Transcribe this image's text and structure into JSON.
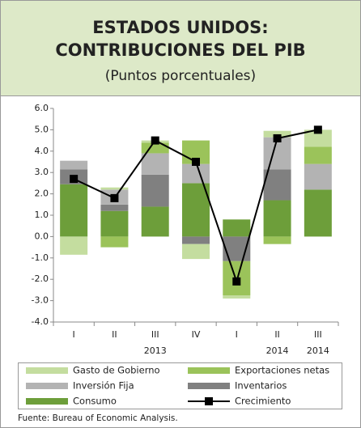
{
  "chart_data": {
    "type": "bar",
    "stacked": true,
    "title": [
      "ESTADOS UNIDOS:",
      "CONTRIBUCIONES DEL PIB"
    ],
    "subtitle": "(Puntos porcentuales)",
    "source": "Fuente:  Bureau of Economic Analysis.",
    "categories": [
      "I",
      "II",
      "III",
      "IV",
      "I",
      "II",
      "III"
    ],
    "year_labels": [
      null,
      null,
      "2013",
      null,
      null,
      "2014",
      "2014"
    ],
    "ylim": [
      -4,
      6
    ],
    "yticks": [
      {
        "value": -4,
        "label": "-4.0"
      },
      {
        "value": -3,
        "label": "-3.0"
      },
      {
        "value": -2,
        "label": "-2.0"
      },
      {
        "value": -1,
        "label": "-1.0"
      },
      {
        "value": 0,
        "label": "0.0"
      },
      {
        "value": 1,
        "label": "1.0"
      },
      {
        "value": 2,
        "label": "2.0"
      },
      {
        "value": 3,
        "label": "3.0"
      },
      {
        "value": 4,
        "label": "4.0"
      },
      {
        "value": 5,
        "label": "5.0"
      },
      {
        "value": 6,
        "label": "6.0"
      }
    ],
    "series": [
      {
        "name": "Consumo",
        "color": "#6d9e3a",
        "values": [
          2.45,
          1.2,
          1.4,
          2.5,
          0.8,
          1.7,
          2.2
        ]
      },
      {
        "name": "Inventarios",
        "color": "#808080",
        "values": [
          0.7,
          0.3,
          1.5,
          -0.35,
          -1.15,
          1.45,
          0
        ]
      },
      {
        "name": "Inversión Fija",
        "color": "#b3b3b3",
        "values": [
          0.4,
          0.7,
          1.0,
          0.9,
          0,
          1.5,
          1.2
        ]
      },
      {
        "name": "Exportaciones netas",
        "color": "#9bc35a",
        "values": [
          0,
          -0.5,
          0.5,
          1.1,
          -1.6,
          -0.35,
          0.8
        ]
      },
      {
        "name": "Gasto de Gobierno",
        "color": "#c4dd9f",
        "values": [
          -0.85,
          0.1,
          0.1,
          -0.7,
          -0.15,
          0.3,
          0.8
        ]
      },
      {
        "name": "Crecimiento",
        "type": "line",
        "color": "#000000",
        "values": [
          2.7,
          1.8,
          4.5,
          3.5,
          -2.1,
          4.6,
          5.0
        ]
      }
    ]
  }
}
